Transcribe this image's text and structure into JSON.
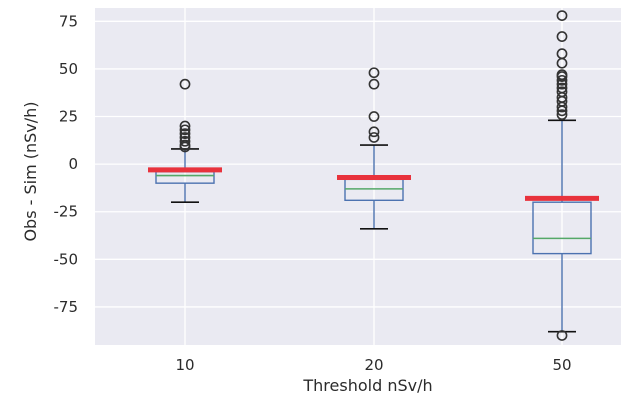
{
  "chart_data": {
    "type": "box",
    "categories": [
      "10",
      "20",
      "50"
    ],
    "xlabel": "Threshold nSv/h",
    "ylabel": "Obs - Sim (nSv/h)",
    "ylim": [
      -95,
      82
    ],
    "yticks": [
      75,
      50,
      25,
      0,
      -25,
      -50,
      -75
    ],
    "grid": true,
    "boxes": [
      {
        "category": "10",
        "whisker_low": -20,
        "q1": -10,
        "median": -6,
        "q3": -4,
        "whisker_high": 8,
        "outliers": [
          9,
          10,
          12,
          14,
          16,
          18,
          20,
          42
        ],
        "highlight": -3
      },
      {
        "category": "20",
        "whisker_low": -34,
        "q1": -19,
        "median": -13,
        "q3": -8,
        "whisker_high": 10,
        "outliers": [
          14,
          17,
          25,
          42,
          48
        ],
        "highlight": -7
      },
      {
        "category": "50",
        "whisker_low": -88,
        "q1": -47,
        "median": -39,
        "q3": -20,
        "whisker_high": 23,
        "outliers": [
          -90,
          26,
          28,
          30,
          33,
          35,
          38,
          40,
          42,
          44,
          46,
          47,
          53,
          58,
          67,
          78
        ],
        "highlight": -18
      }
    ],
    "colors": {
      "plot_bg": "#eaeaf2",
      "grid": "#ffffff",
      "box": "#4c72b0",
      "median": "#55a868",
      "highlight": "#e8323c",
      "outlier": "#333333"
    }
  }
}
